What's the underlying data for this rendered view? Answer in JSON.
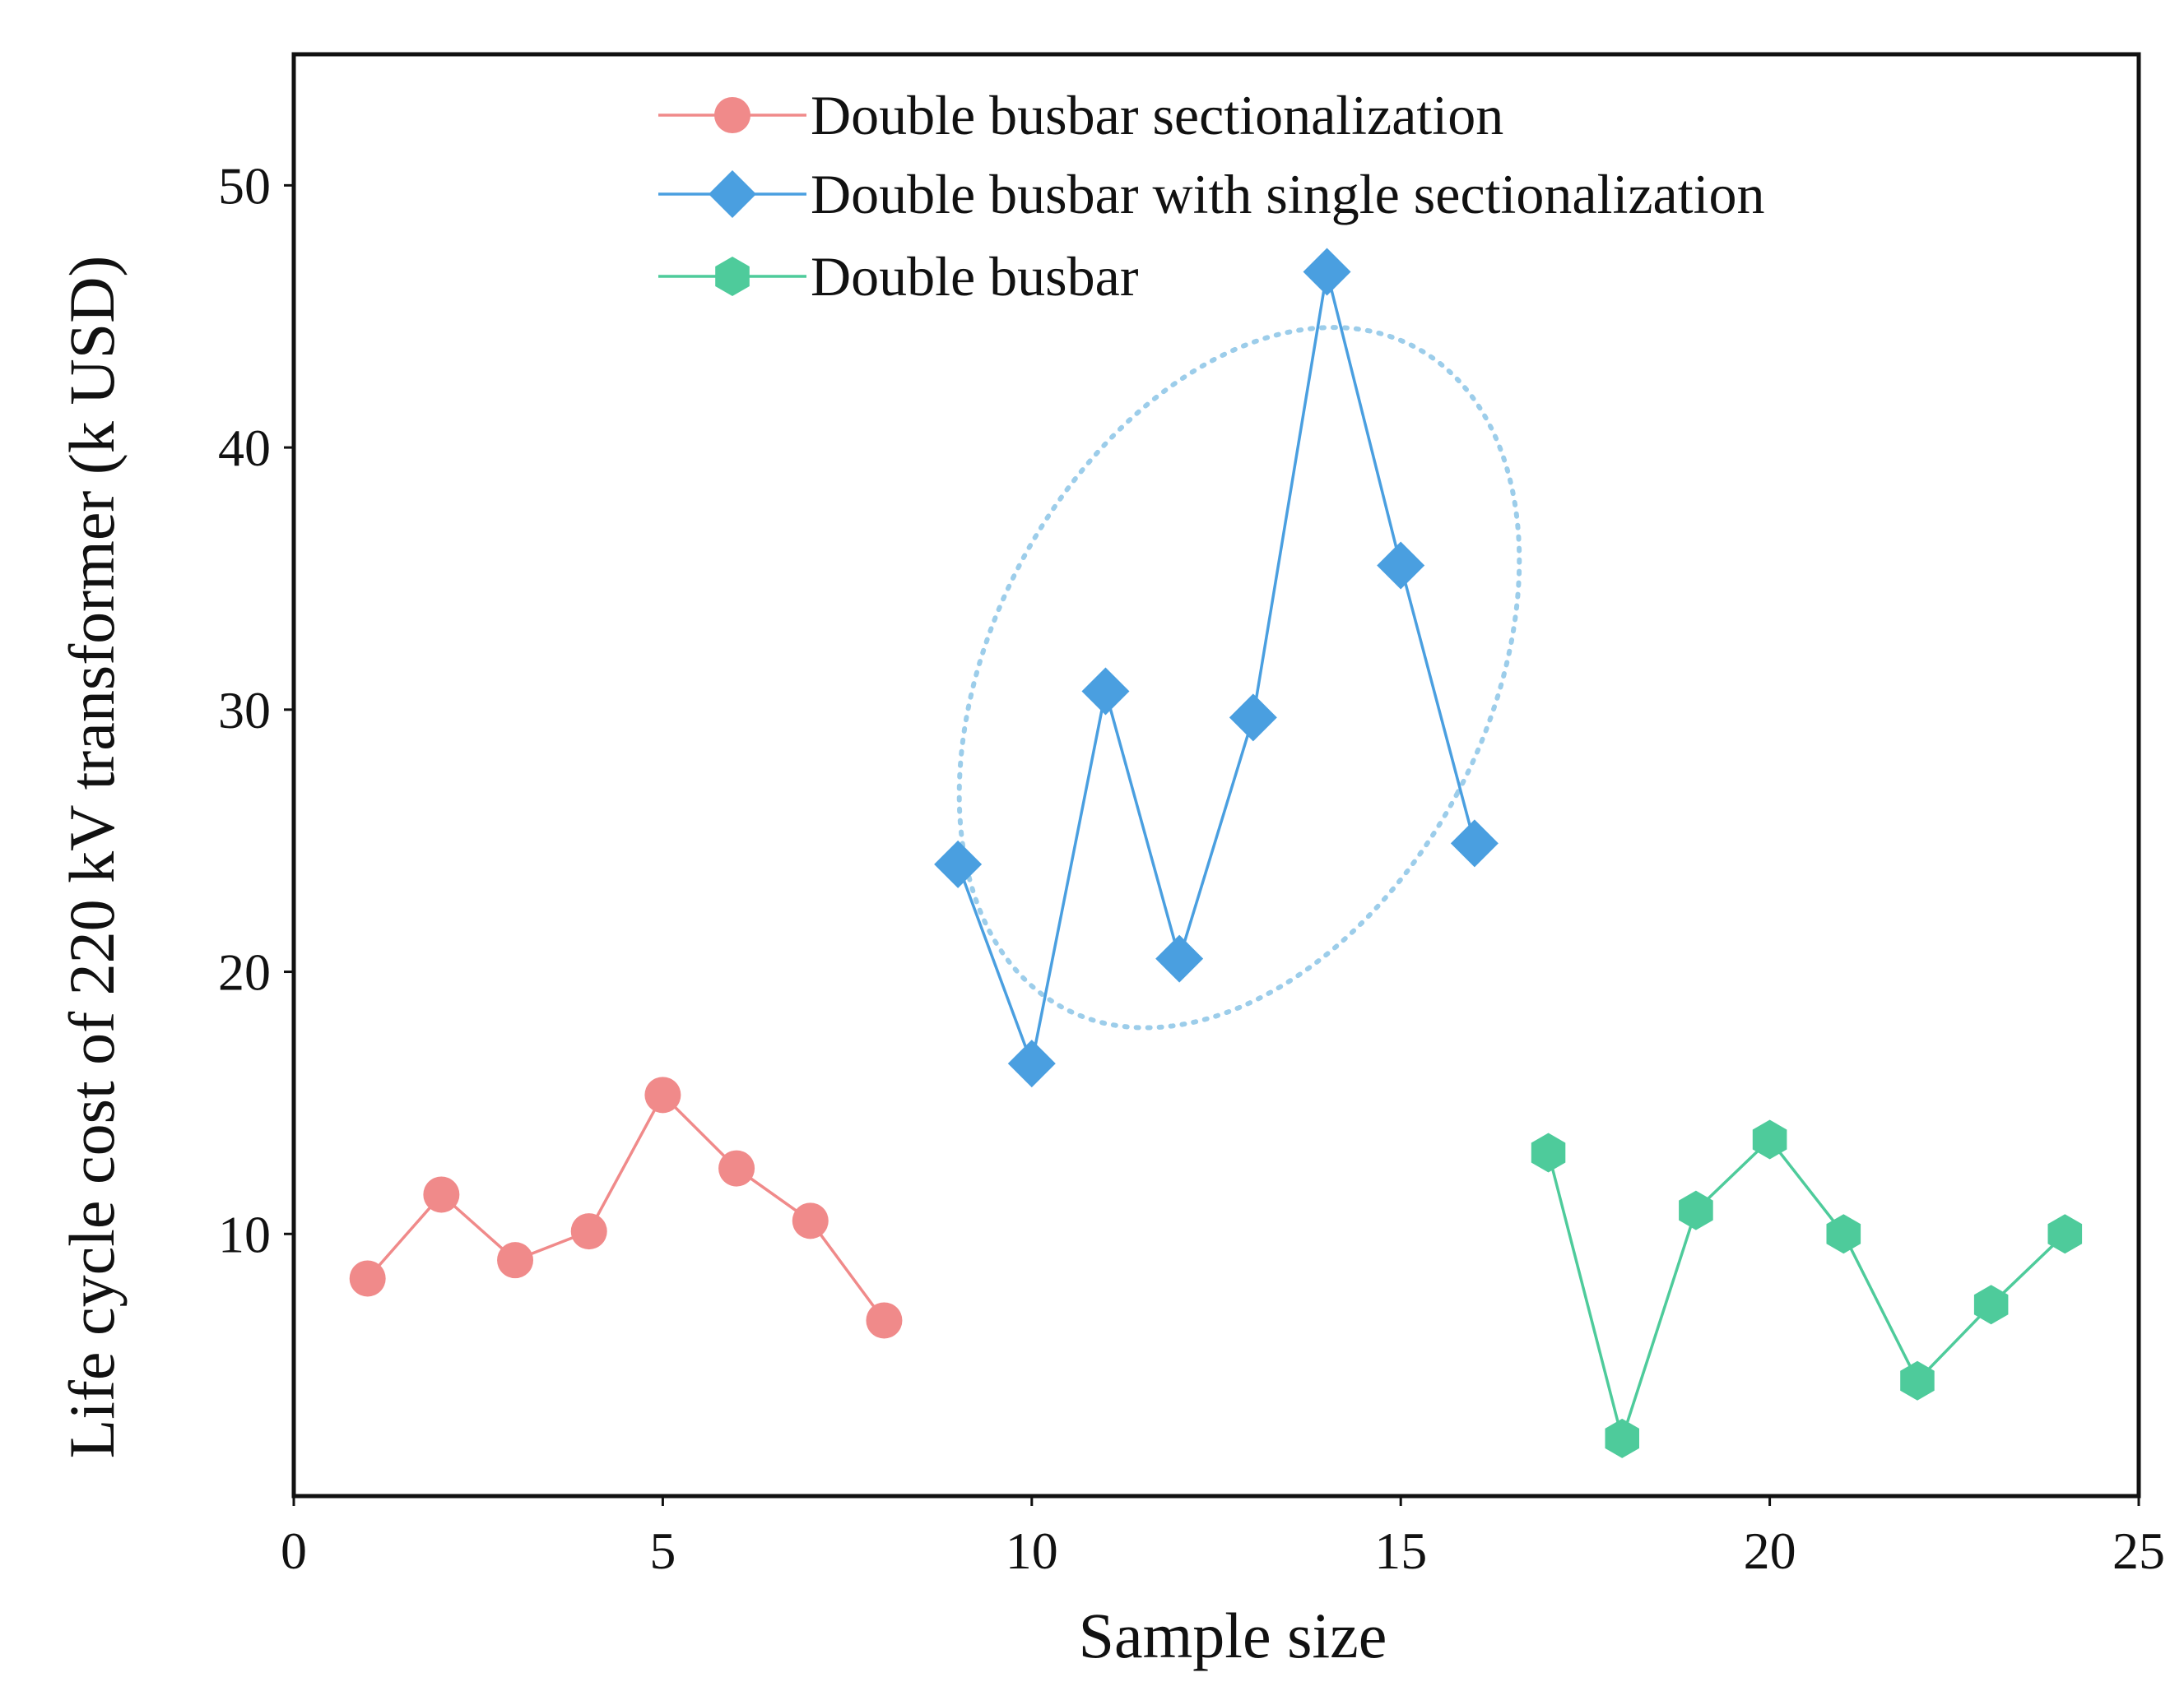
{
  "chart_data": {
    "type": "line",
    "title": "",
    "xlabel": "Sample size",
    "ylabel": "Life cycle cost of 220 kV transformer (k USD)",
    "xlim": [
      0,
      25
    ],
    "ylim": [
      0,
      55
    ],
    "xticks": [
      0,
      5,
      10,
      15,
      20,
      25
    ],
    "yticks": [
      10,
      20,
      30,
      40,
      50
    ],
    "grid": false,
    "legend_position": "top-center",
    "series": [
      {
        "name": "Double busbar sectionalization",
        "marker": "circle",
        "color": "#f08a8a",
        "x": [
          1,
          2,
          3,
          4,
          5,
          6,
          7,
          8
        ],
        "values": [
          8.3,
          11.5,
          9.0,
          10.1,
          15.3,
          12.5,
          10.5,
          6.7
        ]
      },
      {
        "name": "Double busbar with single sectionalization",
        "marker": "diamond",
        "color": "#4a9fe0",
        "x": [
          9,
          10,
          11,
          12,
          13,
          14,
          15,
          16
        ],
        "values": [
          24.1,
          16.5,
          30.7,
          20.5,
          29.7,
          46.7,
          35.5,
          24.9
        ]
      },
      {
        "name": "Double busbar",
        "marker": "hexagon",
        "color": "#4ecb9b",
        "x": [
          17,
          18,
          19,
          20,
          21,
          22,
          23,
          24
        ],
        "values": [
          13.1,
          2.2,
          10.9,
          13.6,
          10.0,
          4.4,
          7.3,
          10.0
        ]
      }
    ],
    "annotations": [
      {
        "type": "dotted-ellipse",
        "series": "Double busbar with single sectionalization",
        "encloses_x": [
          10,
          15
        ],
        "color": "#9ccdea"
      }
    ]
  }
}
